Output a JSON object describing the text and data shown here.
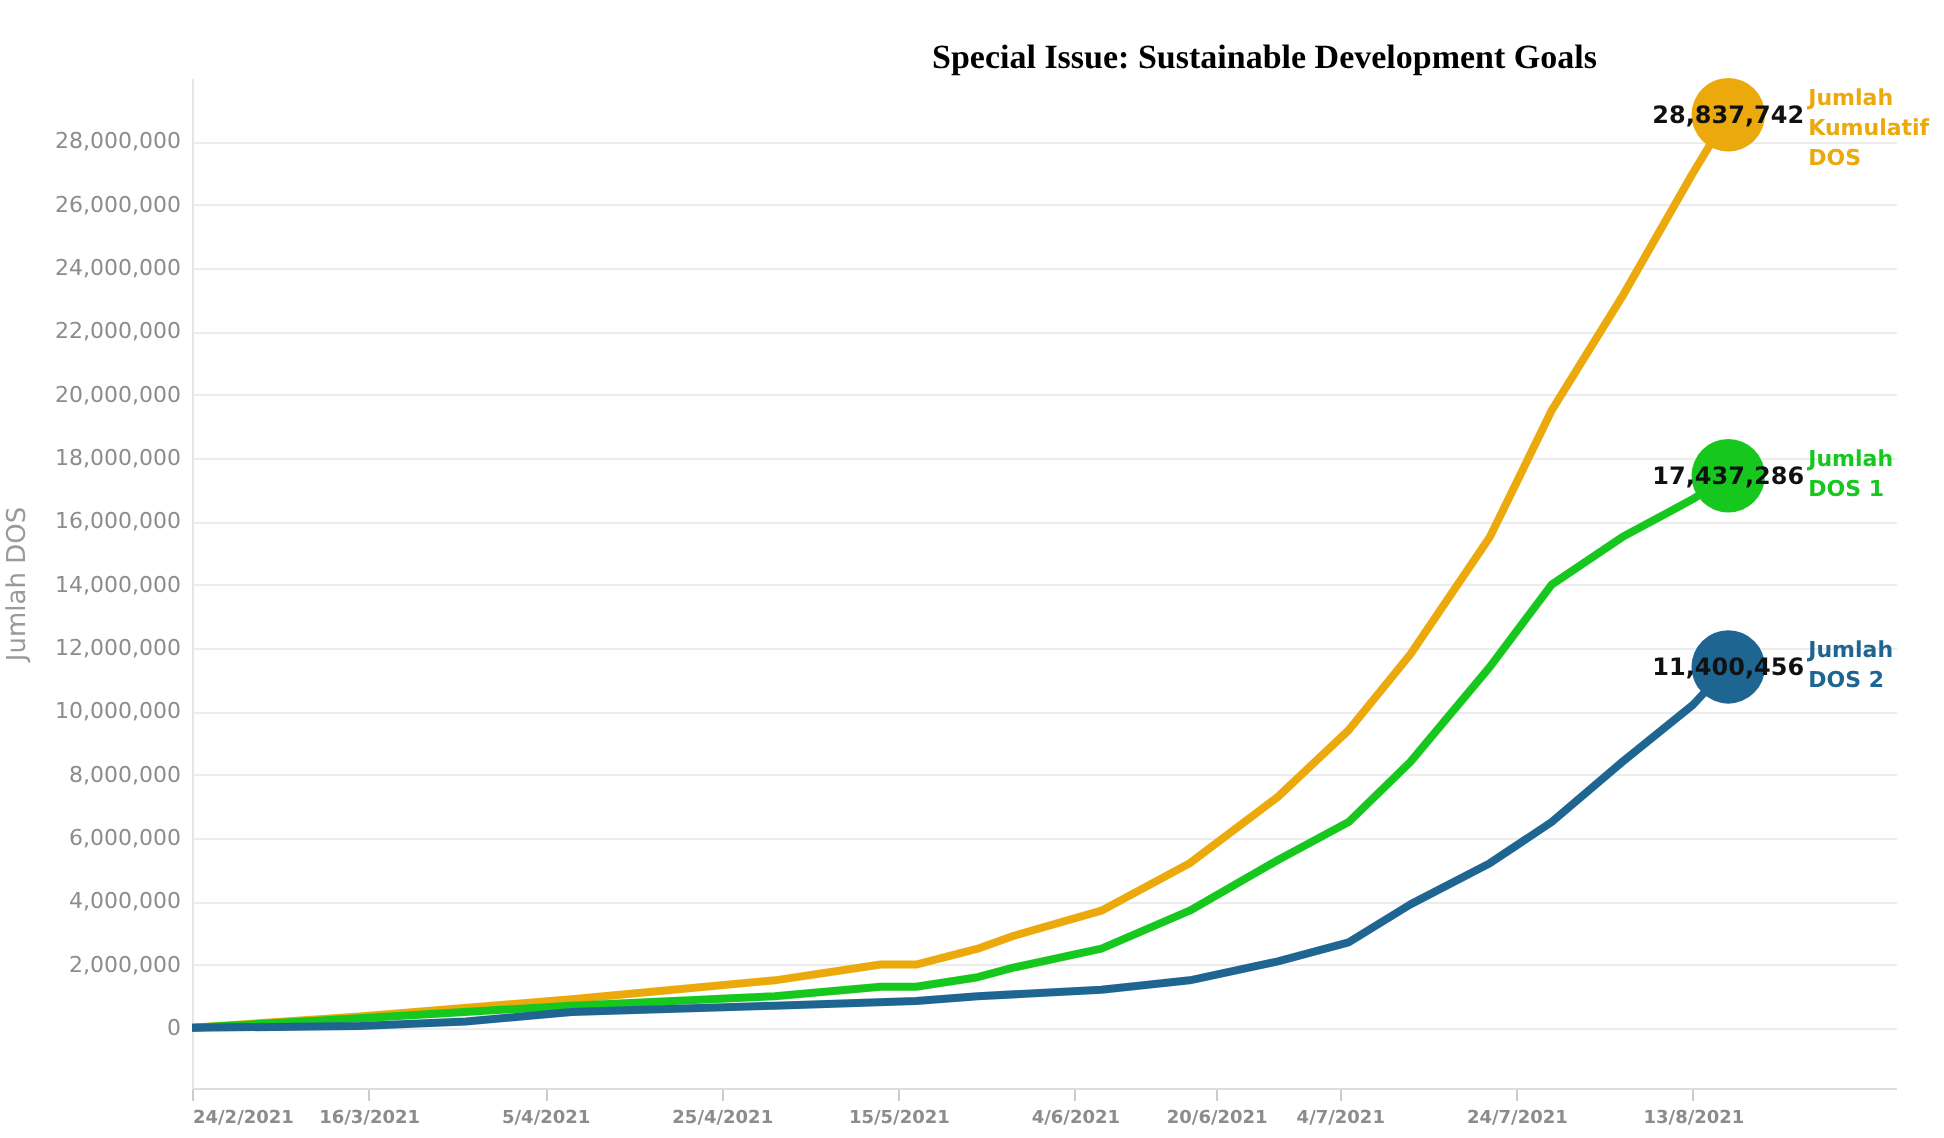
{
  "chart_data": {
    "type": "line",
    "ylabel": "Jumlah DOS",
    "annotations": [
      "Special Issue: Sustainable Development Goals"
    ],
    "xlim": [
      "2021-02-24",
      "2021-09-05"
    ],
    "xticks": [
      {
        "value": "2021-02-24",
        "label": "24/2/2021"
      },
      {
        "value": "2021-03-16",
        "label": "16/3/2021"
      },
      {
        "value": "2021-04-05",
        "label": "5/4/2021"
      },
      {
        "value": "2021-04-25",
        "label": "25/4/2021"
      },
      {
        "value": "2021-05-15",
        "label": "15/5/2021"
      },
      {
        "value": "2021-06-04",
        "label": "4/6/2021"
      },
      {
        "value": "2021-06-20",
        "label": "20/6/2021"
      },
      {
        "value": "2021-07-04",
        "label": "4/7/2021"
      },
      {
        "value": "2021-07-24",
        "label": "24/7/2021"
      },
      {
        "value": "2021-08-13",
        "label": "13/8/2021"
      }
    ],
    "ylim": [
      -1900000,
      30000000
    ],
    "yticks": [
      0,
      {
        "value": 2000000,
        "label": "2,000,000"
      },
      {
        "value": 4000000,
        "label": "4,000,000"
      },
      {
        "value": 6000000,
        "label": "6,000,000"
      },
      {
        "value": 8000000,
        "label": "8,000,000"
      },
      {
        "value": 10000000,
        "label": "10,000,000"
      },
      {
        "value": 12000000,
        "label": "12,000,000"
      },
      {
        "value": 14000000,
        "label": "14,000,000"
      },
      {
        "value": 16000000,
        "label": "16,000,000"
      },
      {
        "value": 18000000,
        "label": "18,000,000"
      },
      {
        "value": 20000000,
        "label": "20,000,000"
      },
      {
        "value": 22000000,
        "label": "22,000,000"
      },
      {
        "value": 24000000,
        "label": "24,000,000"
      },
      {
        "value": 26000000,
        "label": "26,000,000"
      },
      {
        "value": 28000000,
        "label": "28,000,000"
      }
    ],
    "grid": "y",
    "legend": false,
    "line_style": "solid",
    "series": [
      {
        "name": "Jumlah Kumulatif DOS",
        "color": "#eba90c",
        "x": [
          "2021-02-24",
          "2021-03-15",
          "2021-04-08",
          "2021-05-01",
          "2021-05-13",
          "2021-05-17",
          "2021-05-24",
          "2021-05-28",
          "2021-06-07",
          "2021-06-17",
          "2021-06-27",
          "2021-07-05",
          "2021-07-12",
          "2021-07-21",
          "2021-07-28",
          "2021-08-05",
          "2021-08-13",
          "2021-08-17"
        ],
        "values": [
          0,
          360000,
          900000,
          1500000,
          2000000,
          2000000,
          2500000,
          2900000,
          3700000,
          5200000,
          7300000,
          9400000,
          11800000,
          15500000,
          19500000,
          23100000,
          27000000,
          28837742
        ],
        "value_labels": [
          null,
          null,
          null,
          null,
          null,
          null,
          null,
          null,
          null,
          null,
          null,
          null,
          null,
          null,
          null,
          null,
          null,
          "28,837,742"
        ]
      },
      {
        "name": "Jumlah DOS 1",
        "color": "#16c81e",
        "x": [
          "2021-02-24",
          "2021-03-15",
          "2021-04-08",
          "2021-05-01",
          "2021-05-13",
          "2021-05-17",
          "2021-05-24",
          "2021-05-28",
          "2021-06-07",
          "2021-06-17",
          "2021-06-27",
          "2021-07-05",
          "2021-07-12",
          "2021-07-21",
          "2021-07-28",
          "2021-08-05",
          "2021-08-13",
          "2021-08-17"
        ],
        "values": [
          0,
          300000,
          700000,
          1000000,
          1300000,
          1300000,
          1600000,
          1900000,
          2500000,
          3700000,
          5300000,
          6500000,
          8400000,
          11400000,
          14000000,
          15500000,
          16700000,
          17437286
        ],
        "value_labels": [
          null,
          null,
          null,
          null,
          null,
          null,
          null,
          null,
          null,
          null,
          null,
          null,
          null,
          null,
          null,
          null,
          null,
          "17,437,286"
        ]
      },
      {
        "name": "Jumlah DOS 2",
        "color": "#1f6592",
        "x": [
          "2021-02-24",
          "2021-03-15",
          "2021-03-27",
          "2021-04-08",
          "2021-05-01",
          "2021-05-17",
          "2021-05-24",
          "2021-06-07",
          "2021-06-17",
          "2021-06-27",
          "2021-07-05",
          "2021-07-12",
          "2021-07-21",
          "2021-07-28",
          "2021-08-05",
          "2021-08-13",
          "2021-08-17"
        ],
        "values": [
          0,
          60000,
          200000,
          500000,
          700000,
          850000,
          1000000,
          1200000,
          1500000,
          2100000,
          2700000,
          3900000,
          5200000,
          6500000,
          8400000,
          10200000,
          11400456
        ],
        "value_labels": [
          null,
          null,
          null,
          null,
          null,
          null,
          null,
          null,
          null,
          null,
          null,
          null,
          null,
          null,
          null,
          null,
          "11,400,456"
        ]
      }
    ]
  }
}
